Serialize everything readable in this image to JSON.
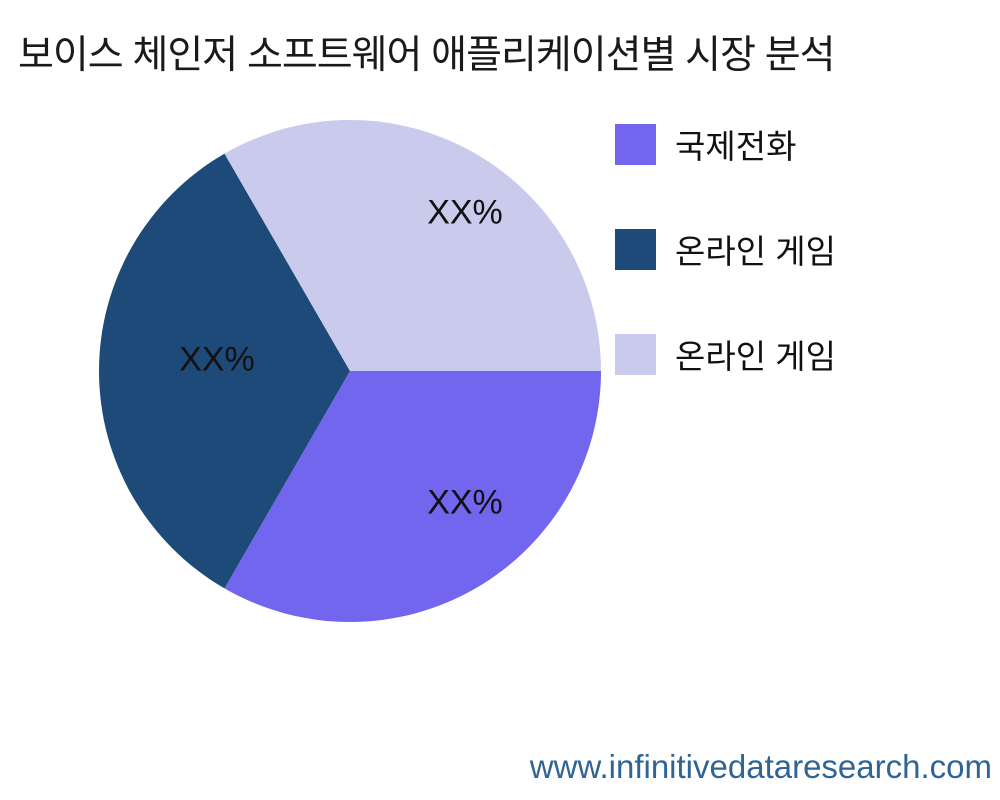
{
  "page": {
    "title": "보이스 체인저 소프트웨어 애플리케이션별 시장 분석",
    "footer_url": "www.infinitivedataresearch.com"
  },
  "colors": {
    "slice_international_call": "#7265EE",
    "slice_online_game_dark": "#1E4A7A",
    "slice_online_game_light": "#CACAEC",
    "title_text": "#1A1A1A",
    "label_text": "#111111",
    "footer_text": "#2E6594",
    "background": "#FFFFFF"
  },
  "chart_data": {
    "type": "pie",
    "title": "보이스 체인저 소프트웨어 애플리케이션별 시장 분석",
    "start_angle_deg": 0,
    "direction": "clockwise",
    "legend_position": "right",
    "slices": [
      {
        "label": "국제전화",
        "value": 33.33,
        "display_value": "XX%",
        "color": "#7265EE"
      },
      {
        "label": "온라인 게임",
        "value": 33.33,
        "display_value": "XX%",
        "color": "#1E4A7A"
      },
      {
        "label": "온라인 게임",
        "value": 33.33,
        "display_value": "XX%",
        "color": "#CACAEC"
      }
    ]
  },
  "legend": {
    "items": [
      {
        "label": "국제전화",
        "color": "#7265EE"
      },
      {
        "label": "온라인 게임",
        "color": "#1E4A7A"
      },
      {
        "label": "온라인 게임",
        "color": "#CACAEC"
      }
    ]
  }
}
